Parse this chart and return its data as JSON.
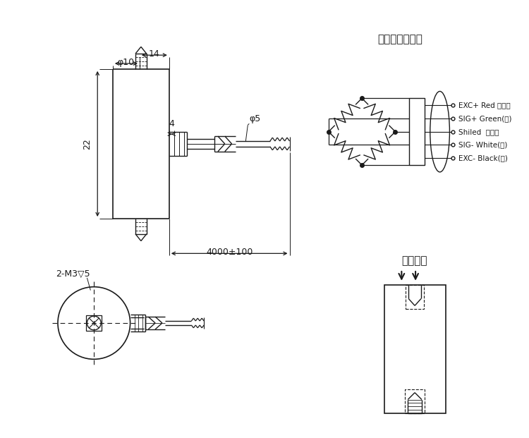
{
  "bg_color": "#ffffff",
  "line_color": "#1a1a1a",
  "title1": "压向正输出线序",
  "title2": "受力方式",
  "label_14": "14",
  "label_phi10": "φ10",
  "label_4": "4",
  "label_phi5": "φ5",
  "label_22": "22",
  "label_4000": "4000±100",
  "label_2m3": "2-M3▽5",
  "wire_labels": [
    "EXC+ Red （红）",
    "SIG+ Green(绿)",
    "Shiled  屏蔽线",
    "SIG- White(白)",
    "EXC- Black(黑)"
  ]
}
